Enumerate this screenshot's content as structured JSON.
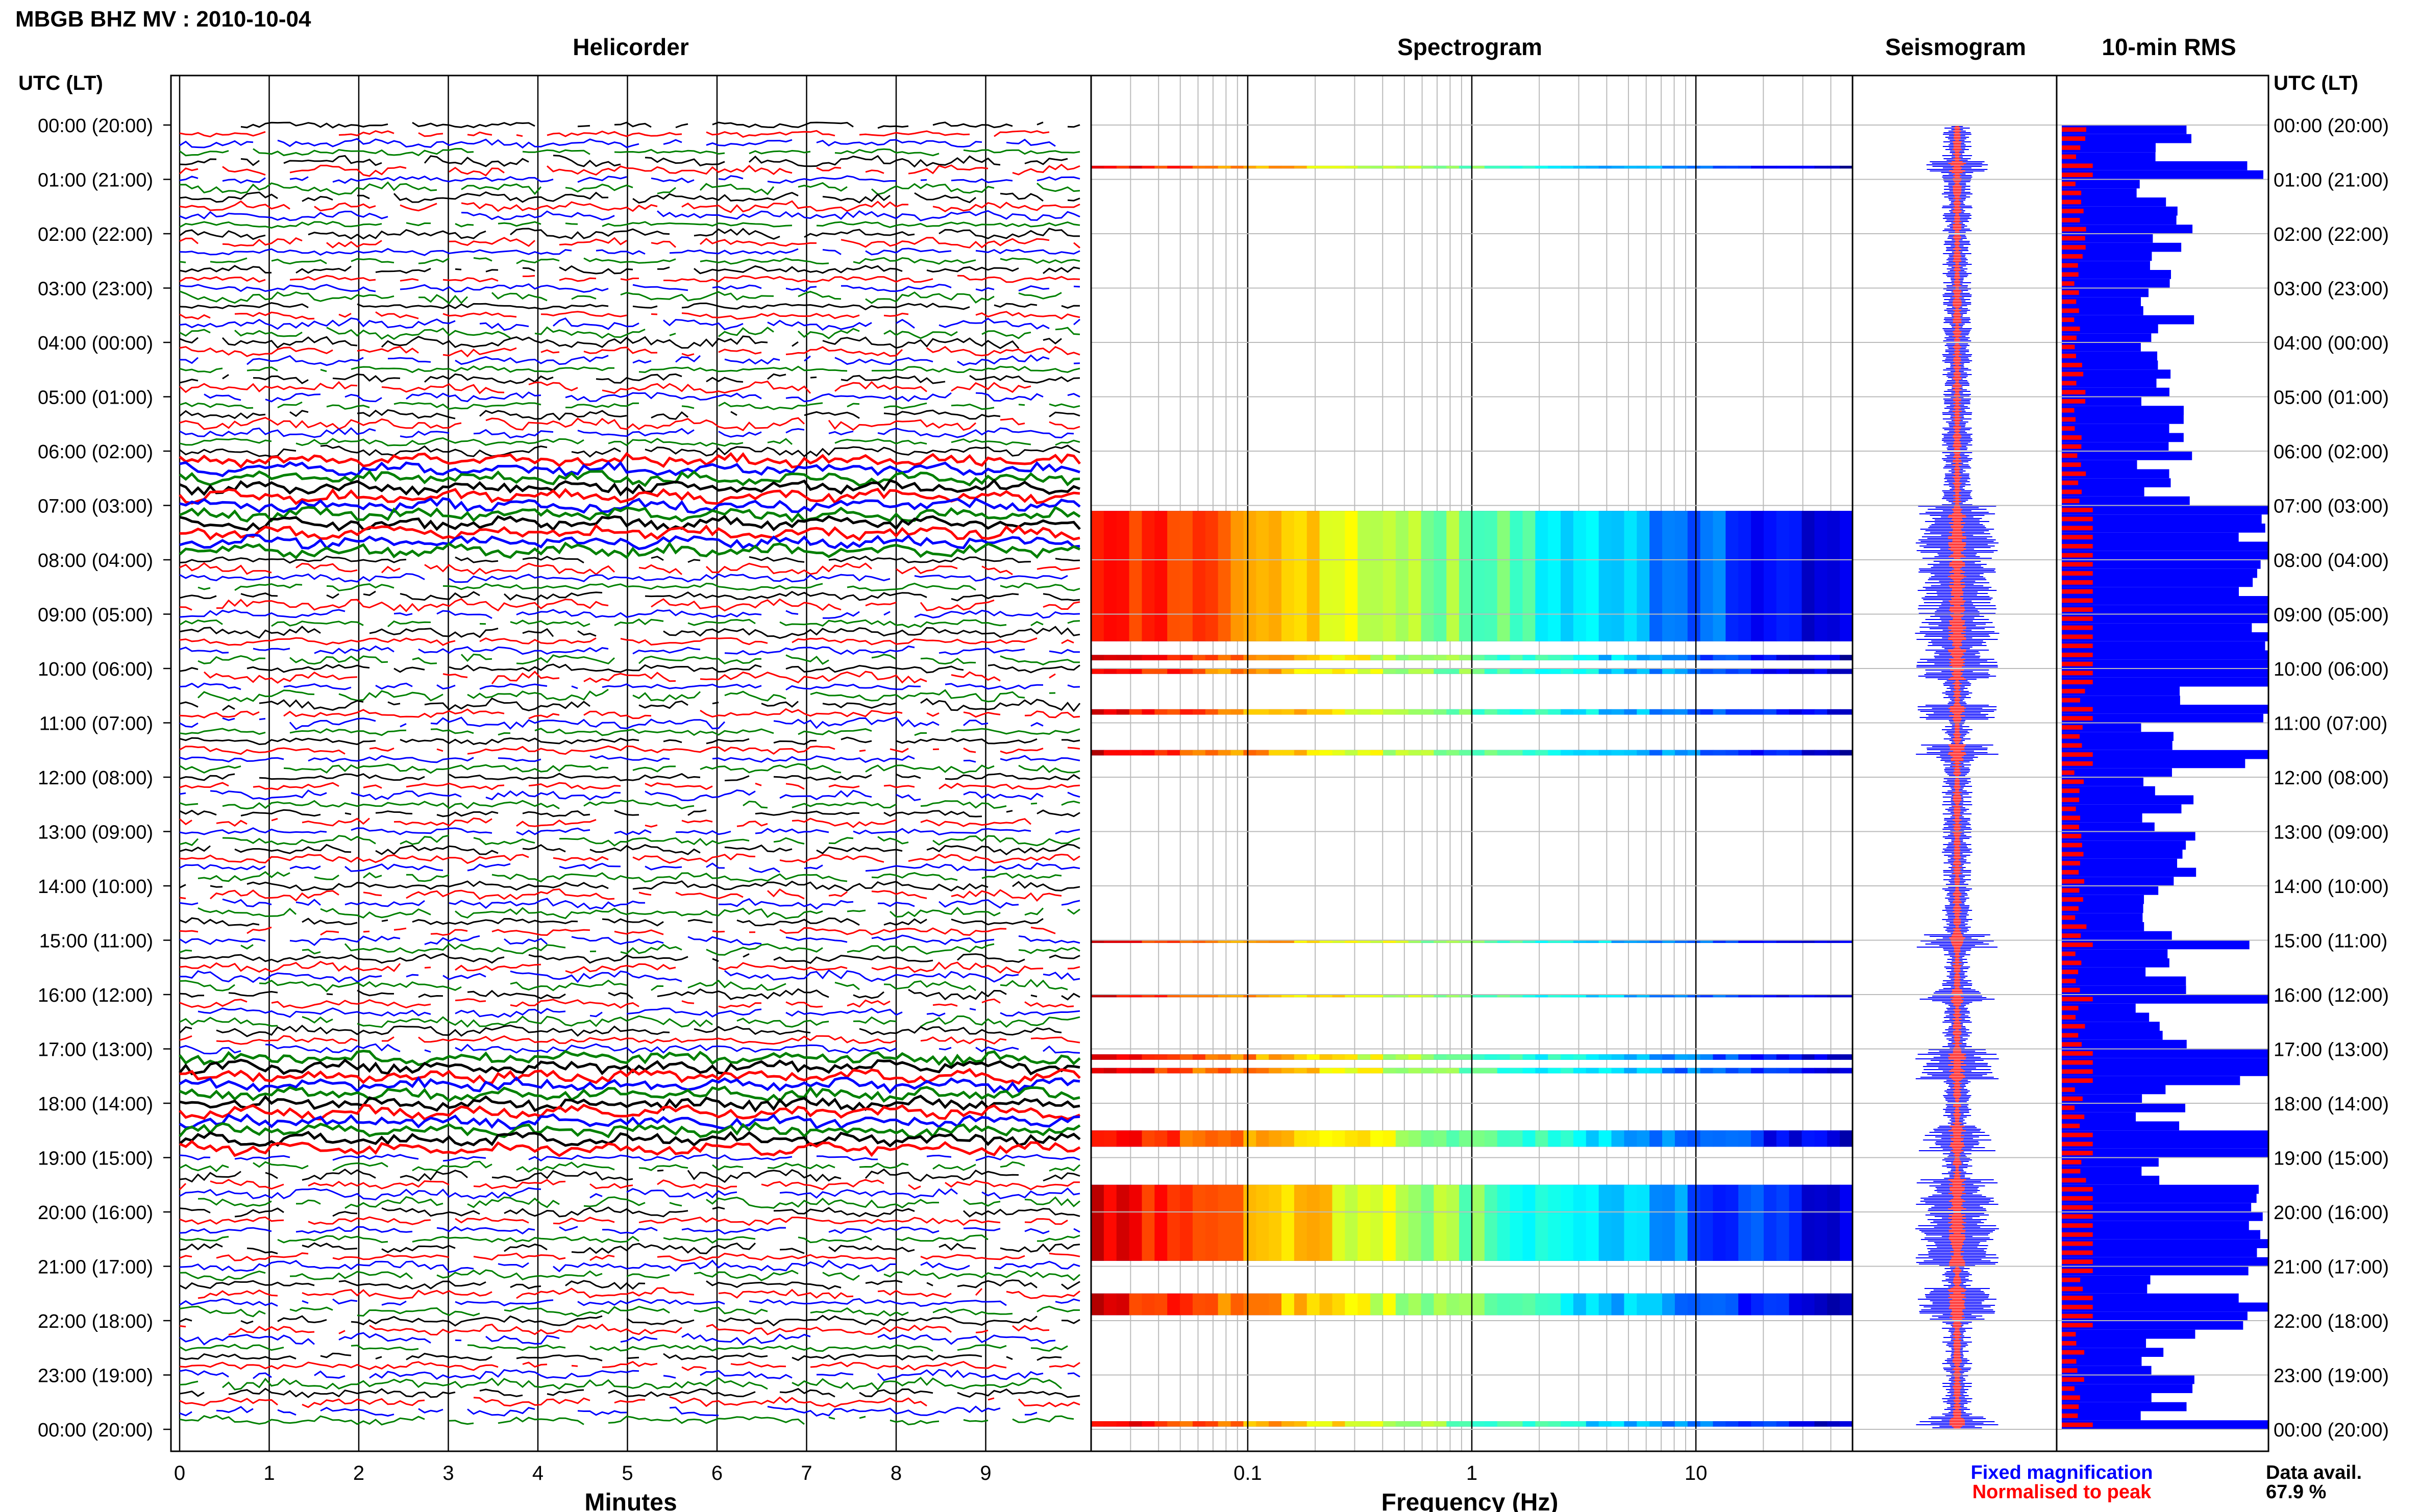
{
  "header": {
    "station_title": "MBGB BHZ MV : 2010-10-04",
    "left_axis_title": "UTC (LT)",
    "right_axis_title": "UTC (LT)"
  },
  "panels": {
    "helicorder_title": "Helicorder",
    "spectrogram_title": "Spectrogram",
    "seismogram_title": "Seismogram",
    "rms_title": "10-min RMS"
  },
  "time_labels": [
    "00:00 (20:00)",
    "01:00 (21:00)",
    "02:00 (22:00)",
    "03:00 (23:00)",
    "04:00 (00:00)",
    "05:00 (01:00)",
    "06:00 (02:00)",
    "07:00 (03:00)",
    "08:00 (04:00)",
    "09:00 (05:00)",
    "10:00 (06:00)",
    "11:00 (07:00)",
    "12:00 (08:00)",
    "13:00 (09:00)",
    "14:00 (10:00)",
    "15:00 (11:00)",
    "16:00 (12:00)",
    "17:00 (13:00)",
    "18:00 (14:00)",
    "19:00 (15:00)",
    "20:00 (16:00)",
    "21:00 (17:00)",
    "22:00 (18:00)",
    "23:00 (19:00)",
    "00:00 (20:00)"
  ],
  "legend": {
    "fixed": "Fixed magnification",
    "normalised": "Normalised to peak",
    "fixed_color": "#0000ff",
    "normalised_color": "#ff0000"
  },
  "data_availability": {
    "label": "Data avail.",
    "value": "67.9 %"
  },
  "chart_data": [
    {
      "type": "line",
      "title": "Helicorder",
      "xlabel": "Minutes",
      "ylabel": "UTC (LT)",
      "x_ticks": [
        "0",
        "1",
        "2",
        "3",
        "4",
        "5",
        "6",
        "7",
        "8",
        "9"
      ],
      "xlim": [
        0,
        10
      ],
      "colors": [
        "#000000",
        "#ff0000",
        "#0000ff",
        "#008000"
      ],
      "lines_per_hour": 6,
      "hours": 24,
      "high_activity_hours": [
        7,
        18
      ]
    },
    {
      "type": "heatmap",
      "title": "Spectrogram",
      "xlabel": "Frequency (Hz)",
      "x_scale": "log",
      "x_ticks": [
        "0.1",
        "1",
        "10"
      ],
      "xlim": [
        0.02,
        50
      ],
      "colormap": "jet",
      "data_blocks_hours": [
        [
          0.75,
          0.8
        ],
        [
          7.1,
          9.5
        ],
        [
          9.75,
          9.85
        ],
        [
          10.0,
          10.1
        ],
        [
          10.75,
          10.85
        ],
        [
          11.5,
          11.6
        ],
        [
          15.0,
          15.05
        ],
        [
          16.0,
          16.05
        ],
        [
          17.1,
          17.2
        ],
        [
          17.35,
          17.45
        ],
        [
          18.5,
          18.8
        ],
        [
          19.5,
          20.9
        ],
        [
          21.5,
          21.9
        ],
        [
          23.85,
          23.95
        ]
      ]
    },
    {
      "type": "line",
      "title": "Seismogram",
      "series": [
        {
          "name": "Fixed magnification",
          "color": "#0000ff"
        },
        {
          "name": "Normalised to peak",
          "color": "#ff0000"
        }
      ]
    },
    {
      "type": "bar",
      "title": "10-min RMS",
      "orientation": "horizontal",
      "bins": 144,
      "series": [
        {
          "name": "Fixed magnification",
          "color": "#0000ff"
        },
        {
          "name": "Normalised to peak",
          "color": "#ff0000"
        }
      ]
    }
  ]
}
